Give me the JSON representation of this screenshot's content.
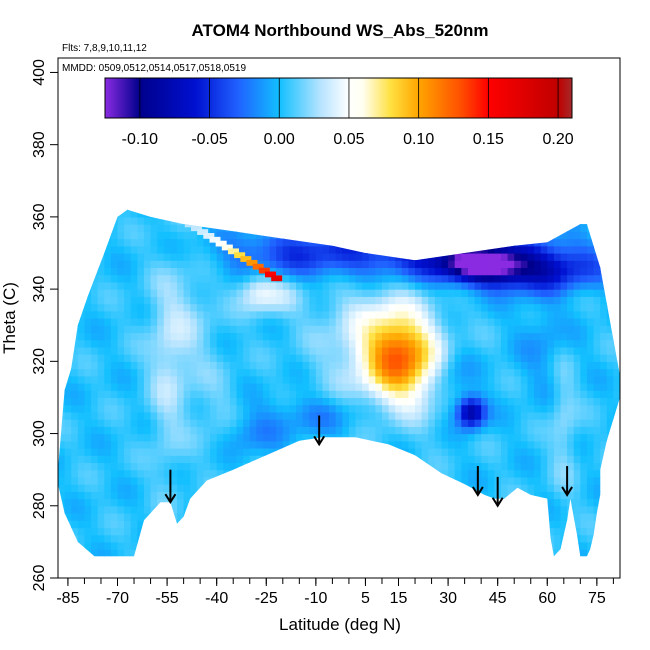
{
  "chart_data": {
    "type": "heatmap",
    "title": "ATOM4 Northbound WS_Abs_520nm",
    "annotations": {
      "flights": "Flts: 7,8,9,10,11,12",
      "dates": "MMDD: 0509,0512,0514,0517,0518,0519"
    },
    "xlabel": "Latitude (deg N)",
    "ylabel": "Theta (C)",
    "xlim": [
      -88,
      82
    ],
    "ylim": [
      260,
      404
    ],
    "x_ticks": [
      -85,
      -70,
      -55,
      -40,
      -25,
      -10,
      5,
      15,
      30,
      45,
      60,
      75
    ],
    "x_minor_step": 5,
    "y_ticks": [
      260,
      280,
      300,
      320,
      340,
      360,
      380,
      400
    ],
    "y_minor_step": 20,
    "grid": false,
    "colorbar": {
      "range": [
        -0.125,
        0.21
      ],
      "ticks": [
        -0.1,
        -0.05,
        0.0,
        0.05,
        0.1,
        0.15,
        0.2
      ],
      "tick_labels": [
        "-0.10",
        "-0.05",
        "0.00",
        "0.05",
        "0.10",
        "0.15",
        "0.20"
      ],
      "stops": [
        {
          "v": -0.125,
          "c": "#8a2be2"
        },
        {
          "v": -0.1,
          "c": "#00008b"
        },
        {
          "v": -0.06,
          "c": "#0010d0"
        },
        {
          "v": -0.03,
          "c": "#2060ff"
        },
        {
          "v": 0.0,
          "c": "#12bfff"
        },
        {
          "v": 0.03,
          "c": "#b8e4ff"
        },
        {
          "v": 0.05,
          "c": "#ffffff"
        },
        {
          "v": 0.06,
          "c": "#fffff0"
        },
        {
          "v": 0.08,
          "c": "#ffe040"
        },
        {
          "v": 0.1,
          "c": "#ffa500"
        },
        {
          "v": 0.13,
          "c": "#ff5000"
        },
        {
          "v": 0.15,
          "c": "#ff0000"
        },
        {
          "v": 0.2,
          "c": "#c00000"
        },
        {
          "v": 0.21,
          "c": "#a52a2a"
        }
      ]
    },
    "background_value": 0.003,
    "domain_outline": [
      [
        -88,
        286
      ],
      [
        -88,
        290
      ],
      [
        -86,
        312
      ],
      [
        -84,
        318
      ],
      [
        -82,
        330
      ],
      [
        -79,
        338
      ],
      [
        -74,
        350
      ],
      [
        -70,
        360
      ],
      [
        -67,
        362
      ],
      [
        -60,
        360
      ],
      [
        -50,
        358
      ],
      [
        -35,
        356
      ],
      [
        -20,
        354
      ],
      [
        -5,
        352
      ],
      [
        5,
        350
      ],
      [
        20,
        348
      ],
      [
        35,
        350
      ],
      [
        50,
        352
      ],
      [
        60,
        353
      ],
      [
        70,
        358
      ],
      [
        72,
        358
      ],
      [
        76,
        346
      ],
      [
        78,
        336
      ],
      [
        80,
        326
      ],
      [
        82,
        316
      ],
      [
        82,
        310
      ],
      [
        78,
        298
      ],
      [
        76,
        290
      ],
      [
        76,
        283
      ],
      [
        75,
        278
      ],
      [
        74,
        272
      ],
      [
        73,
        268
      ],
      [
        72,
        266
      ],
      [
        70,
        266
      ],
      [
        69,
        272
      ],
      [
        67,
        282
      ],
      [
        66,
        276
      ],
      [
        64,
        268
      ],
      [
        62,
        266
      ],
      [
        61,
        271
      ],
      [
        60,
        282
      ],
      [
        55,
        283
      ],
      [
        51,
        285
      ],
      [
        47,
        282
      ],
      [
        44,
        282
      ],
      [
        41,
        283
      ],
      [
        35,
        286
      ],
      [
        28,
        289
      ],
      [
        20,
        294
      ],
      [
        12,
        297
      ],
      [
        2,
        299
      ],
      [
        -8,
        299
      ],
      [
        -15,
        298
      ],
      [
        -25,
        294
      ],
      [
        -35,
        290
      ],
      [
        -43,
        287
      ],
      [
        -48,
        282
      ],
      [
        -50,
        277
      ],
      [
        -52,
        275
      ],
      [
        -54,
        281
      ],
      [
        -57,
        281
      ],
      [
        -62,
        276
      ],
      [
        -65,
        266
      ],
      [
        -77,
        266
      ],
      [
        -82,
        270
      ],
      [
        -86,
        278
      ]
    ],
    "features": [
      {
        "x": 15,
        "y": 322,
        "sx": 7,
        "sy": 8,
        "v": 0.075
      },
      {
        "x": 8,
        "y": 326,
        "sx": 12,
        "sy": 12,
        "v": 0.035
      },
      {
        "x": 20,
        "y": 317,
        "sx": 9,
        "sy": 9,
        "v": 0.03
      },
      {
        "x": 25,
        "y": 350,
        "sx": 30,
        "sy": 5,
        "v": -0.06
      },
      {
        "x": 40,
        "y": 347,
        "sx": 8,
        "sy": 3,
        "v": -0.1
      },
      {
        "x": 55,
        "y": 345,
        "sx": 14,
        "sy": 4,
        "v": -0.06
      },
      {
        "x": -20,
        "y": 350,
        "sx": 15,
        "sy": 5,
        "v": -0.025
      },
      {
        "x": 37,
        "y": 306,
        "sx": 3,
        "sy": 3,
        "v": -0.09
      },
      {
        "x": 31,
        "y": 316,
        "sx": 5,
        "sy": 6,
        "v": -0.025
      },
      {
        "x": -28,
        "y": 340,
        "sx": 4,
        "sy": 4,
        "v": 0.03
      },
      {
        "x": -22,
        "y": 338,
        "sx": 6,
        "sy": 4,
        "v": 0.025
      },
      {
        "x": -50,
        "y": 330,
        "sx": 7,
        "sy": 14,
        "v": 0.02
      },
      {
        "x": -55,
        "y": 312,
        "sx": 4,
        "sy": 20,
        "v": 0.018
      },
      {
        "x": 65,
        "y": 305,
        "sx": 3,
        "sy": 15,
        "v": 0.02
      },
      {
        "x": -10,
        "y": 305,
        "sx": 12,
        "sy": 4,
        "v": -0.02
      },
      {
        "x": -30,
        "y": 300,
        "sx": 6,
        "sy": 4,
        "v": -0.02
      },
      {
        "x": 60,
        "y": 325,
        "sx": 6,
        "sy": 10,
        "v": -0.015
      },
      {
        "x": -40,
        "y": 305,
        "sx": 5,
        "sy": 8,
        "v": 0.012
      }
    ],
    "plume_track": {
      "from": [
        -50,
        359
      ],
      "to": [
        -22,
        343
      ],
      "width": 1.6,
      "start_value": 0.03,
      "end_value": 0.17
    },
    "arrows": [
      {
        "x": -54,
        "y_top": 290,
        "y_tip": 281
      },
      {
        "x": -9,
        "y_top": 305,
        "y_tip": 297
      },
      {
        "x": 39,
        "y_top": 291,
        "y_tip": 283
      },
      {
        "x": 45,
        "y_top": 288,
        "y_tip": 280
      },
      {
        "x": 66,
        "y_top": 291,
        "y_tip": 283
      }
    ]
  }
}
